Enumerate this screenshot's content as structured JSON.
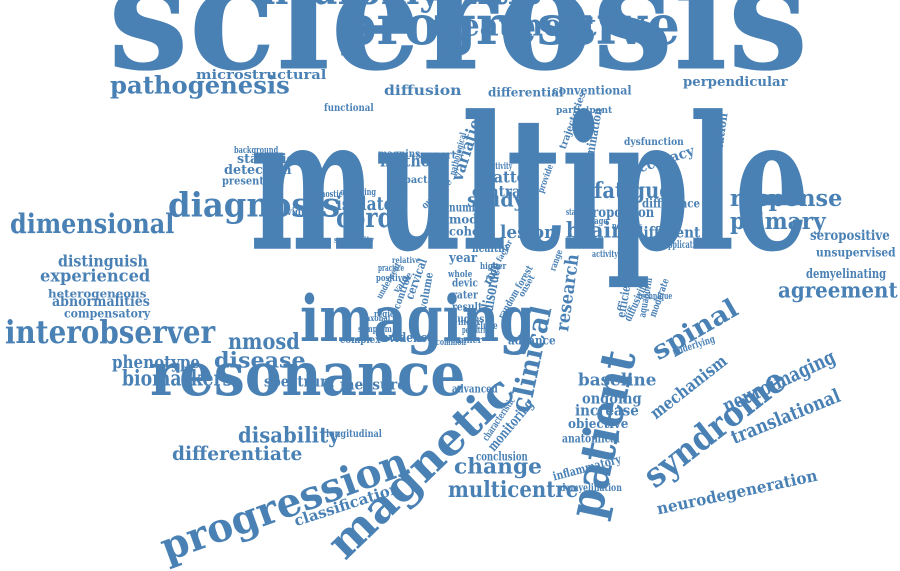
{
  "color": "#4a81b5",
  "words": [
    {
      "id": "multiple",
      "text": "multiple"
    },
    {
      "id": "sclerosis",
      "text": "sclerosis"
    },
    {
      "id": "imaging",
      "text": "imaging"
    },
    {
      "id": "resonance",
      "text": "resonance"
    },
    {
      "id": "progressive",
      "text": "progressive"
    },
    {
      "id": "neuromyelitis",
      "text": "neuromyelitis"
    },
    {
      "id": "treatment",
      "text": "treatment"
    },
    {
      "id": "pathogenesis",
      "text": "pathogenesis"
    },
    {
      "id": "microstructural",
      "text": "microstructural"
    },
    {
      "id": "diffusion",
      "text": "diffusion"
    },
    {
      "id": "differential",
      "text": "differential"
    },
    {
      "id": "conventional",
      "text": "conventional"
    },
    {
      "id": "perpendicular",
      "text": "perpendicular"
    },
    {
      "id": "functional",
      "text": "functional"
    },
    {
      "id": "participant",
      "text": "participant"
    },
    {
      "id": "background",
      "text": "background"
    },
    {
      "id": "statistical",
      "text": "statistical"
    },
    {
      "id": "detection",
      "text": "detection"
    },
    {
      "id": "presenting",
      "text": "presenting"
    },
    {
      "id": "magnins",
      "text": "magnins"
    },
    {
      "id": "support",
      "text": "support"
    },
    {
      "id": "method",
      "text": "method"
    },
    {
      "id": "impact",
      "text": "impact"
    },
    {
      "id": "variation",
      "text": "variation"
    },
    {
      "id": "matter",
      "text": "matter"
    },
    {
      "id": "central",
      "text": "central"
    },
    {
      "id": "trajectories",
      "text": "trajectories"
    },
    {
      "id": "dissemination",
      "text": "dissemination"
    },
    {
      "id": "dysfunction",
      "text": "dysfunction"
    },
    {
      "id": "accuracy",
      "text": "accuracy"
    },
    {
      "id": "segmentation",
      "text": "segmentation"
    },
    {
      "id": "diagnosis",
      "text": "diagnosis"
    },
    {
      "id": "isolated",
      "text": "isolated"
    },
    {
      "id": "cord",
      "text": "cord"
    },
    {
      "id": "study",
      "text": "study"
    },
    {
      "id": "fatigue",
      "text": "fatigue"
    },
    {
      "id": "proportion",
      "text": "proportion"
    },
    {
      "id": "difference",
      "text": "difference"
    },
    {
      "id": "response",
      "text": "response"
    },
    {
      "id": "primary",
      "text": "primary"
    },
    {
      "id": "dimensional",
      "text": "dimensional"
    },
    {
      "id": "individual",
      "text": "individual"
    },
    {
      "id": "diagnostic",
      "text": "diagnostic"
    },
    {
      "id": "operating",
      "text": "operating"
    },
    {
      "id": "specificity",
      "text": "specificity"
    },
    {
      "id": "number",
      "text": "number"
    },
    {
      "id": "model",
      "text": "model"
    },
    {
      "id": "cohort",
      "text": "cohort"
    },
    {
      "id": "lesion",
      "text": "lesion"
    },
    {
      "id": "brain",
      "text": "brain"
    },
    {
      "id": "different",
      "text": "different"
    },
    {
      "id": "application",
      "text": "application"
    },
    {
      "id": "seropositive",
      "text": "seropositive"
    },
    {
      "id": "unsupervised",
      "text": "unsupervised"
    },
    {
      "id": "demyelinating",
      "text": "demyelinating"
    },
    {
      "id": "distinguish",
      "text": "distinguish"
    },
    {
      "id": "experienced",
      "text": "experienced"
    },
    {
      "id": "heterogeneous",
      "text": "heterogeneous"
    },
    {
      "id": "abnormalities",
      "text": "abnormalities"
    },
    {
      "id": "compensatory",
      "text": "compensatory"
    },
    {
      "id": "agreement",
      "text": "agreement"
    },
    {
      "id": "interobserver",
      "text": "interobserver"
    },
    {
      "id": "nmosd",
      "text": "nmosd"
    },
    {
      "id": "phenotype",
      "text": "phenotype"
    },
    {
      "id": "disease",
      "text": "disease"
    },
    {
      "id": "biomarkers",
      "text": "biomarkers"
    },
    {
      "id": "spectrum",
      "text": "spectrum"
    },
    {
      "id": "measure",
      "text": "measure"
    },
    {
      "id": "complex",
      "text": "complex"
    },
    {
      "id": "evidence",
      "text": "evidence"
    },
    {
      "id": "scanner",
      "text": "scanner"
    },
    {
      "id": "advance",
      "text": "advance"
    },
    {
      "id": "year",
      "text": "year"
    },
    {
      "id": "devic",
      "text": "devic"
    },
    {
      "id": "rater",
      "text": "rater"
    },
    {
      "id": "result",
      "text": "result"
    },
    {
      "id": "studies",
      "text": "studies"
    },
    {
      "id": "healthy",
      "text": "healthy"
    },
    {
      "id": "disorder",
      "text": "disorder"
    },
    {
      "id": "research",
      "text": "research"
    },
    {
      "id": "clinical",
      "text": "clinical"
    },
    {
      "id": "spinal",
      "text": "spinal"
    },
    {
      "id": "patient",
      "text": "patient"
    },
    {
      "id": "syndrome",
      "text": "syndrome"
    },
    {
      "id": "mechanism",
      "text": "mechanism"
    },
    {
      "id": "neuroimaging",
      "text": "neuroimaging"
    },
    {
      "id": "translational",
      "text": "translational"
    },
    {
      "id": "neurodegeneration",
      "text": "neurodegeneration"
    },
    {
      "id": "baseline",
      "text": "baseline"
    },
    {
      "id": "ongoing",
      "text": "ongoing"
    },
    {
      "id": "increase",
      "text": "increase"
    },
    {
      "id": "advanced",
      "text": "advanced"
    },
    {
      "id": "objective",
      "text": "objective"
    },
    {
      "id": "anatomical",
      "text": "anatomical"
    },
    {
      "id": "monitoring",
      "text": "monitoring"
    },
    {
      "id": "characteristic",
      "text": "characteristic"
    },
    {
      "id": "diffusivity",
      "text": "diffusivity"
    },
    {
      "id": "underlying",
      "text": "underlying"
    },
    {
      "id": "efficiency",
      "text": "efficiency"
    },
    {
      "id": "aquaporin",
      "text": "aquaporin"
    },
    {
      "id": "moderate",
      "text": "moderate"
    },
    {
      "id": "disability",
      "text": "disability"
    },
    {
      "id": "longitudinal",
      "text": "longitudinal"
    },
    {
      "id": "differentiate",
      "text": "differentiate"
    },
    {
      "id": "progression",
      "text": "progression"
    },
    {
      "id": "classification",
      "text": "classification"
    },
    {
      "id": "magnetic",
      "text": "magnetic"
    },
    {
      "id": "change",
      "text": "change"
    },
    {
      "id": "conclusion",
      "text": "conclusion"
    },
    {
      "id": "inflammatory",
      "text": "inflammatory"
    },
    {
      "id": "demyelination",
      "text": "demyelination"
    },
    {
      "id": "multicentre",
      "text": "multicentre"
    },
    {
      "id": "volume",
      "text": "volume"
    },
    {
      "id": "cervical",
      "text": "cervical"
    },
    {
      "id": "role",
      "text": "role"
    },
    {
      "id": "random-forest",
      "text": "random forest"
    },
    {
      "id": "symptom",
      "text": "symptom"
    },
    {
      "id": "practice",
      "text": "practice"
    },
    {
      "id": "include",
      "text": "include"
    },
    {
      "id": "pediatric",
      "text": "pediatric"
    },
    {
      "id": "standard",
      "text": "standard"
    },
    {
      "id": "damage",
      "text": "damage"
    },
    {
      "id": "network",
      "text": "network"
    },
    {
      "id": "technique",
      "text": "technique"
    },
    {
      "id": "activity",
      "text": "activity"
    },
    {
      "id": "sensitivity",
      "text": "sensitivity"
    },
    {
      "id": "outcome",
      "text": "outcome"
    },
    {
      "id": "pathological",
      "text": "pathological"
    },
    {
      "id": "provide",
      "text": "provide"
    },
    {
      "id": "underwent",
      "text": "underwent"
    },
    {
      "id": "positive",
      "text": "positive"
    },
    {
      "id": "region",
      "text": "region"
    },
    {
      "id": "index",
      "text": "index"
    },
    {
      "id": "common",
      "text": "common"
    },
    {
      "id": "value",
      "text": "value"
    },
    {
      "id": "relative",
      "text": "relative"
    },
    {
      "id": "higher",
      "text": "higher"
    },
    {
      "id": "whole",
      "text": "whole"
    },
    {
      "id": "factor",
      "text": "factor"
    },
    {
      "id": "control",
      "text": "control"
    },
    {
      "id": "axonal",
      "text": "axonal"
    },
    {
      "id": "onset",
      "text": "onset"
    },
    {
      "id": "range",
      "text": "range"
    }
  ]
}
